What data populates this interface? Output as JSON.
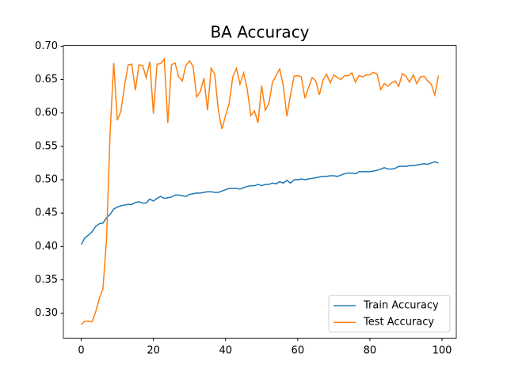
{
  "chart_data": {
    "type": "line",
    "title": "BA Accuracy",
    "x": [
      0,
      1,
      2,
      3,
      4,
      5,
      6,
      7,
      8,
      9,
      10,
      11,
      12,
      13,
      14,
      15,
      16,
      17,
      18,
      19,
      20,
      21,
      22,
      23,
      24,
      25,
      26,
      27,
      28,
      29,
      30,
      31,
      32,
      33,
      34,
      35,
      36,
      37,
      38,
      39,
      40,
      41,
      42,
      43,
      44,
      45,
      46,
      47,
      48,
      49,
      50,
      51,
      52,
      53,
      54,
      55,
      56,
      57,
      58,
      59,
      60,
      61,
      62,
      63,
      64,
      65,
      66,
      67,
      68,
      69,
      70,
      71,
      72,
      73,
      74,
      75,
      76,
      77,
      78,
      79,
      80,
      81,
      82,
      83,
      84,
      85,
      86,
      87,
      88,
      89,
      90,
      91,
      92,
      93,
      94,
      95,
      96,
      97,
      98,
      99
    ],
    "series": [
      {
        "name": "Train Accuracy",
        "color": "#1f77b4",
        "values": [
          0.403,
          0.413,
          0.417,
          0.422,
          0.43,
          0.434,
          0.435,
          0.443,
          0.448,
          0.456,
          0.459,
          0.461,
          0.462,
          0.463,
          0.463,
          0.466,
          0.467,
          0.465,
          0.465,
          0.471,
          0.468,
          0.472,
          0.475,
          0.472,
          0.473,
          0.474,
          0.477,
          0.477,
          0.476,
          0.475,
          0.478,
          0.479,
          0.48,
          0.48,
          0.481,
          0.482,
          0.482,
          0.481,
          0.481,
          0.483,
          0.485,
          0.487,
          0.487,
          0.487,
          0.486,
          0.488,
          0.49,
          0.491,
          0.491,
          0.493,
          0.491,
          0.493,
          0.493,
          0.495,
          0.494,
          0.497,
          0.495,
          0.499,
          0.495,
          0.5,
          0.5,
          0.501,
          0.5,
          0.501,
          0.502,
          0.503,
          0.504,
          0.505,
          0.505,
          0.506,
          0.506,
          0.505,
          0.507,
          0.509,
          0.51,
          0.51,
          0.509,
          0.512,
          0.512,
          0.512,
          0.512,
          0.513,
          0.514,
          0.516,
          0.518,
          0.516,
          0.516,
          0.517,
          0.52,
          0.52,
          0.52,
          0.521,
          0.521,
          0.522,
          0.523,
          0.524,
          0.523,
          0.525,
          0.527,
          0.525
        ]
      },
      {
        "name": "Test Accuracy",
        "color": "#ff7f0e",
        "values": [
          0.283,
          0.288,
          0.288,
          0.287,
          0.302,
          0.322,
          0.336,
          0.41,
          0.57,
          0.675,
          0.589,
          0.603,
          0.641,
          0.672,
          0.673,
          0.634,
          0.672,
          0.671,
          0.653,
          0.677,
          0.599,
          0.673,
          0.674,
          0.681,
          0.585,
          0.672,
          0.675,
          0.654,
          0.648,
          0.671,
          0.678,
          0.67,
          0.624,
          0.632,
          0.652,
          0.604,
          0.667,
          0.658,
          0.604,
          0.576,
          0.596,
          0.614,
          0.654,
          0.667,
          0.643,
          0.66,
          0.636,
          0.596,
          0.603,
          0.585,
          0.641,
          0.604,
          0.614,
          0.646,
          0.656,
          0.666,
          0.641,
          0.595,
          0.627,
          0.655,
          0.656,
          0.654,
          0.622,
          0.638,
          0.653,
          0.648,
          0.627,
          0.649,
          0.658,
          0.645,
          0.657,
          0.653,
          0.65,
          0.656,
          0.656,
          0.66,
          0.646,
          0.656,
          0.654,
          0.657,
          0.657,
          0.661,
          0.658,
          0.635,
          0.644,
          0.64,
          0.645,
          0.648,
          0.64,
          0.659,
          0.655,
          0.646,
          0.657,
          0.644,
          0.654,
          0.655,
          0.648,
          0.643,
          0.627,
          0.656
        ]
      }
    ],
    "xlim": [
      -4.95,
      103.95
    ],
    "xticks": [
      0,
      20,
      40,
      60,
      80,
      100
    ],
    "ylim": [
      0.2626,
      0.7009
    ],
    "yticks": [
      {
        "value": 0.3,
        "label": "0.30"
      },
      {
        "value": 0.35,
        "label": "0.35"
      },
      {
        "value": 0.4,
        "label": "0.40"
      },
      {
        "value": 0.45,
        "label": "0.45"
      },
      {
        "value": 0.5,
        "label": "0.50"
      },
      {
        "value": 0.55,
        "label": "0.55"
      },
      {
        "value": 0.6,
        "label": "0.60"
      },
      {
        "value": 0.65,
        "label": "0.65"
      },
      {
        "value": 0.7,
        "label": "0.70"
      }
    ],
    "legend": "lower right",
    "grid": false
  }
}
